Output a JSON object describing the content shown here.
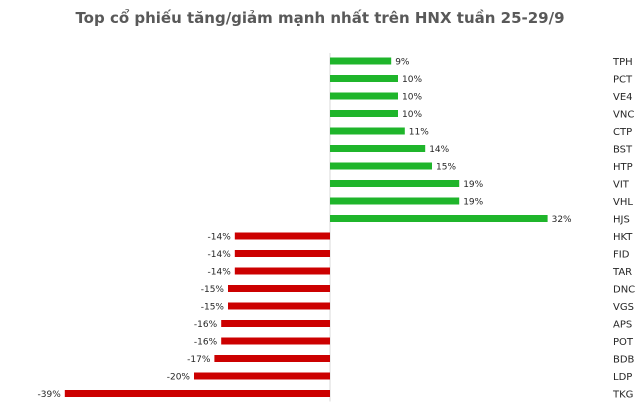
{
  "chart_data": {
    "type": "bar",
    "orientation": "horizontal",
    "title": "Top cổ phiếu tăng/giảm mạnh nhất trên HNX tuần 25-29/9",
    "xlabel": "",
    "ylabel": "",
    "grid": false,
    "legend": "none",
    "categories": [
      "TPH",
      "PCT",
      "VE4",
      "VNC",
      "CTP",
      "BST",
      "HTP",
      "VIT",
      "VHL",
      "HJS",
      "HKT",
      "FID",
      "TAR",
      "DNC",
      "VGS",
      "APS",
      "POT",
      "BDB",
      "LDP",
      "TKG"
    ],
    "values": [
      9,
      10,
      10,
      10,
      11,
      14,
      15,
      19,
      19,
      32,
      -14,
      -14,
      -14,
      -15,
      -15,
      -16,
      -16,
      -17,
      -20,
      -39
    ],
    "labels": [
      "9%",
      "10%",
      "10%",
      "10%",
      "11%",
      "14%",
      "15%",
      "19%",
      "19%",
      "32%",
      "-14%",
      "-14%",
      "-14%",
      "-15%",
      "-15%",
      "-16%",
      "-16%",
      "-17%",
      "-20%",
      "-39%"
    ],
    "xlim": [
      -42,
      42
    ],
    "colors": {
      "positive": "#1fb52b",
      "negative": "#cc0000"
    }
  }
}
